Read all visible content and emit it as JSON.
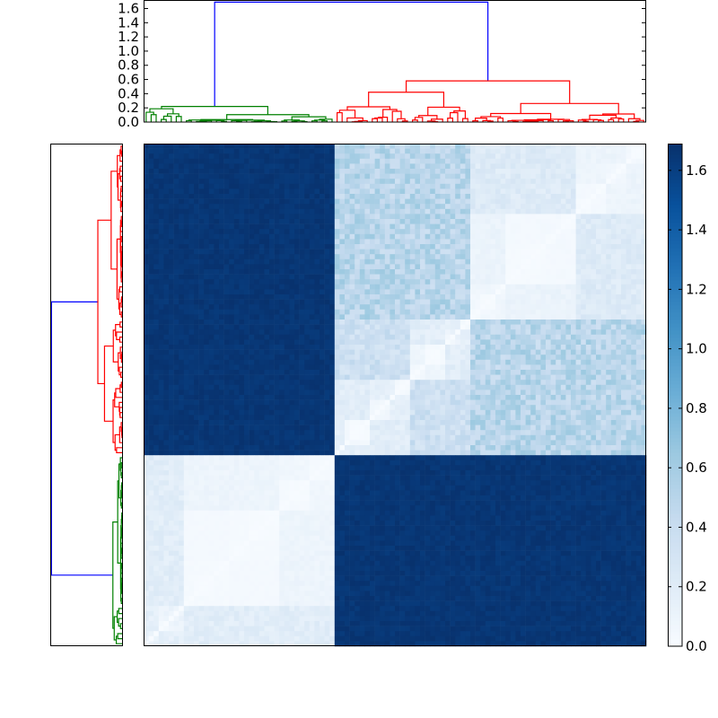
{
  "chart_data": {
    "type": "heatmap",
    "colormap": "Blues",
    "colormap_stops": [
      "#f7fbff",
      "#deebf7",
      "#c6dbef",
      "#9ecae1",
      "#6baed6",
      "#4292c6",
      "#2171b5",
      "#08519c",
      "#08306b"
    ],
    "value_range": [
      0.0,
      1.69
    ],
    "colorbar_ticks": [
      "0.0",
      "0.2",
      "0.4",
      "0.6",
      "0.8",
      "1.0",
      "1.2",
      "1.4",
      "1.6"
    ],
    "dendrogram_yticks": [
      "0.0",
      "0.2",
      "0.4",
      "0.6",
      "0.8",
      "1.0",
      "1.2",
      "1.4",
      "1.6"
    ],
    "dendrogram_ylim": [
      0,
      1.72
    ],
    "n_leaves": 100,
    "root_height": 1.69,
    "above_threshold_color": "#0000ff",
    "clusters": [
      {
        "size": 38,
        "color": "#008000",
        "height": 0.22
      },
      {
        "size": 62,
        "color": "#ff0000",
        "height": 0.58
      }
    ],
    "between_cluster_value": 1.65,
    "row_order": "reversed column order",
    "grid": false
  }
}
